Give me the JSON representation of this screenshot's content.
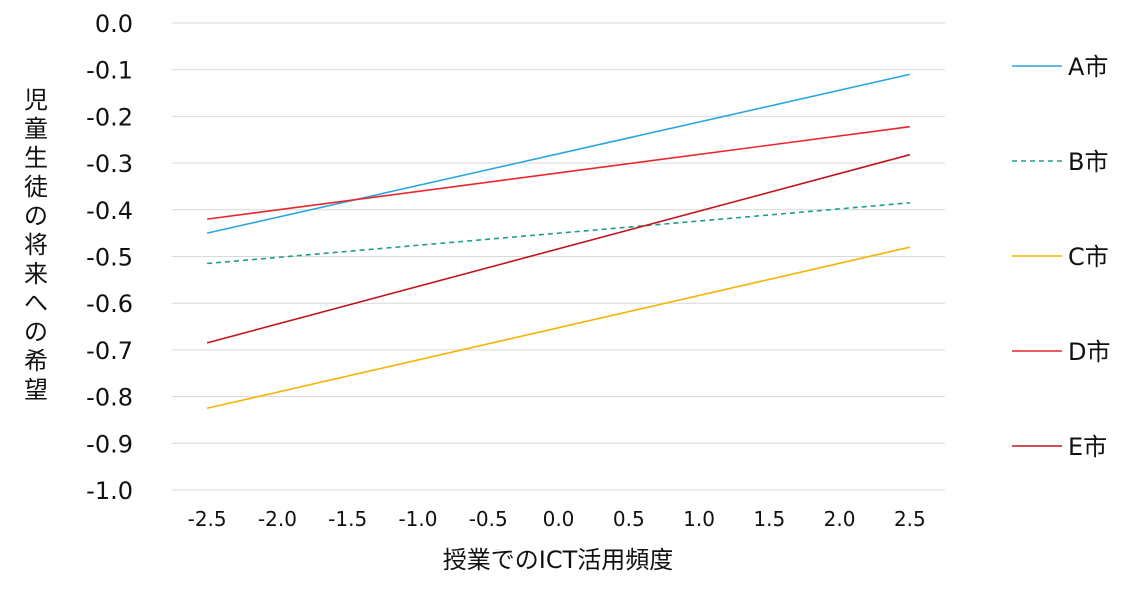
{
  "chart_data": {
    "type": "line",
    "xlabel": "授業でのICT活用頻度",
    "ylabel": "児童生徒の将来への希望",
    "x": [
      -2.5,
      2.5
    ],
    "xticks": [
      -2.5,
      -2.0,
      -1.5,
      -1.0,
      -0.5,
      0.0,
      0.5,
      1.0,
      1.5,
      2.0,
      2.5
    ],
    "xtick_labels": [
      "-2.5",
      "-2.0",
      "-1.5",
      "-1.0",
      "-0.5",
      "0.0",
      "0.5",
      "1.0",
      "1.5",
      "2.0",
      "2.5"
    ],
    "xlim": [
      -2.75,
      2.75
    ],
    "yticks": [
      0.0,
      -0.1,
      -0.2,
      -0.3,
      -0.4,
      -0.5,
      -0.6,
      -0.7,
      -0.8,
      -0.9,
      -1.0
    ],
    "ytick_labels": [
      "0.0",
      "-0.1",
      "-0.2",
      "-0.3",
      "-0.4",
      "-0.5",
      "-0.6",
      "-0.7",
      "-0.8",
      "-0.9",
      "-1.0"
    ],
    "ylim": [
      -1.0,
      0.0
    ],
    "grid": true,
    "legend_position": "right",
    "series": [
      {
        "name": "A市",
        "values": [
          -0.45,
          -0.11
        ],
        "color": "#2aa7dc",
        "dash": "solid"
      },
      {
        "name": "B市",
        "values": [
          -0.515,
          -0.385
        ],
        "color": "#1f9e8a",
        "dash": "dashed"
      },
      {
        "name": "C市",
        "values": [
          -0.825,
          -0.48
        ],
        "color": "#f4b400",
        "dash": "solid"
      },
      {
        "name": "D市",
        "values": [
          -0.42,
          -0.222
        ],
        "color": "#e8262b",
        "dash": "solid"
      },
      {
        "name": "E市",
        "values": [
          -0.685,
          -0.282
        ],
        "color": "#c0141c",
        "dash": "solid"
      }
    ]
  }
}
